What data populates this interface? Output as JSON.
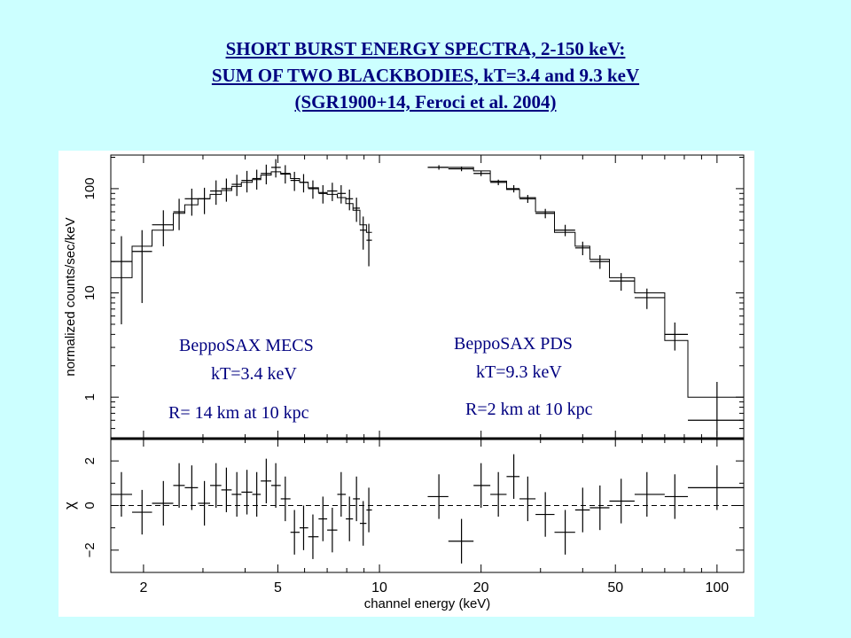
{
  "title_lines": [
    "SHORT BURST ENERGY SPECTRA, 2-150 keV:",
    "SUM OF TWO BLACKBODIES, kT=3.4 and 9.3 keV",
    "(SGR1900+14, Feroci et al. 2004)"
  ],
  "colors": {
    "background": "#ccffff",
    "title": "#000080",
    "annotation": "#000080",
    "plot_ink": "#000000"
  },
  "chart_data": [
    {
      "type": "scatter",
      "panel": "spectrum",
      "xlabel": "channel energy (keV)",
      "ylabel": "normalized counts/sec/keV",
      "xscale": "log",
      "yscale": "log",
      "xlim": [
        1.6,
        120
      ],
      "ylim": [
        0.4,
        210
      ],
      "xticks": [
        2,
        5,
        10,
        20,
        50,
        100
      ],
      "xtick_labels": [
        "2",
        "5",
        "10",
        "20",
        "50",
        "100"
      ],
      "yticks": [
        1,
        10,
        100
      ],
      "ytick_labels": [
        "1",
        "10",
        "100"
      ],
      "annotations": {
        "mecs_name": "BeppoSAX MECS",
        "mecs_kt": "kT=3.4 keV",
        "mecs_radius": "R= 14 km at 10 kpc",
        "pds_name": "BeppoSAX PDS",
        "pds_kt": "kT=9.3 keV",
        "pds_radius": "R=2 km at 10 kpc"
      },
      "series": [
        {
          "instrument": "MECS",
          "x": [
            1.72,
            1.98,
            2.29,
            2.55,
            2.78,
            3.03,
            3.28,
            3.52,
            3.78,
            4.05,
            4.33,
            4.62,
            4.93,
            5.26,
            5.6,
            5.96,
            6.35,
            6.8,
            7.25,
            7.7,
            8.15,
            8.55,
            8.95,
            9.3
          ],
          "x_low": [
            1.6,
            1.85,
            2.12,
            2.45,
            2.65,
            2.9,
            3.15,
            3.4,
            3.65,
            3.9,
            4.2,
            4.45,
            4.78,
            5.1,
            5.45,
            5.8,
            6.15,
            6.6,
            7.0,
            7.5,
            7.95,
            8.35,
            8.75,
            9.15
          ],
          "x_high": [
            1.85,
            2.12,
            2.45,
            2.65,
            2.9,
            3.15,
            3.4,
            3.65,
            3.9,
            4.2,
            4.45,
            4.78,
            5.1,
            5.45,
            5.8,
            6.15,
            6.6,
            7.0,
            7.5,
            7.95,
            8.35,
            8.75,
            9.15,
            9.5
          ],
          "y": [
            20,
            25,
            45,
            60,
            80,
            80,
            95,
            100,
            110,
            120,
            125,
            140,
            160,
            140,
            120,
            115,
            100,
            90,
            95,
            90,
            80,
            65,
            40,
            32
          ],
          "y_low": [
            5,
            8,
            28,
            40,
            55,
            57,
            70,
            75,
            85,
            92,
            98,
            110,
            128,
            112,
            95,
            92,
            80,
            72,
            76,
            72,
            62,
            48,
            26,
            18
          ],
          "y_high": [
            35,
            40,
            62,
            80,
            100,
            102,
            120,
            125,
            136,
            148,
            152,
            170,
            192,
            168,
            145,
            138,
            120,
            108,
            114,
            108,
            98,
            82,
            54,
            46
          ],
          "model_edges": [
            1.6,
            1.85,
            2.12,
            2.45,
            2.65,
            2.9,
            3.15,
            3.4,
            3.65,
            3.9,
            4.2,
            4.45,
            4.78,
            5.1,
            5.45,
            5.8,
            6.15,
            6.6,
            7.0,
            7.5,
            7.95,
            8.35,
            8.75,
            9.15,
            9.5
          ],
          "model_values": [
            14,
            28,
            40,
            58,
            70,
            80,
            88,
            96,
            105,
            115,
            122,
            135,
            145,
            138,
            125,
            115,
            102,
            92,
            88,
            82,
            72,
            62,
            45,
            38
          ]
        },
        {
          "instrument": "PDS",
          "x": [
            15,
            17.5,
            20,
            22.5,
            25,
            27.5,
            31,
            35.5,
            40,
            45,
            52,
            62,
            75,
            100
          ],
          "x_low": [
            13.9,
            16,
            19,
            21.3,
            23.8,
            26,
            29,
            33,
            38,
            42,
            48,
            57,
            70,
            82
          ],
          "x_high": [
            16,
            19,
            21.3,
            23.8,
            26,
            29,
            33,
            38,
            42,
            48,
            57,
            70,
            82,
            120
          ],
          "y": [
            160,
            155,
            140,
            115,
            100,
            80,
            58,
            40,
            27,
            20,
            13,
            9,
            4,
            0.6
          ],
          "y_low": [
            152,
            147,
            132,
            108,
            92,
            73,
            52,
            35,
            23,
            17,
            10.5,
            7,
            2.8,
            0.42
          ],
          "y_high": [
            168,
            163,
            148,
            122,
            108,
            87,
            64,
            45,
            31,
            23,
            15.5,
            11,
            5.2,
            1.4
          ],
          "model_edges": [
            13.9,
            16,
            19,
            21.3,
            23.8,
            26,
            29,
            33,
            38,
            42,
            48,
            57,
            70,
            82,
            120
          ],
          "model_values": [
            160,
            160,
            148,
            118,
            98,
            82,
            60,
            38,
            28,
            21,
            14,
            10,
            3.5,
            1
          ]
        }
      ]
    },
    {
      "type": "scatter",
      "panel": "residuals",
      "ylabel": "χ",
      "xscale": "log",
      "xlim": [
        1.6,
        120
      ],
      "ylim": [
        -3,
        3
      ],
      "yticks": [
        -2,
        0,
        2
      ],
      "ytick_labels": [
        "−2",
        "0",
        "2"
      ],
      "reference_line": 0,
      "series": [
        {
          "instrument": "MECS",
          "x": [
            1.72,
            1.98,
            2.29,
            2.55,
            2.78,
            3.03,
            3.28,
            3.52,
            3.78,
            4.05,
            4.33,
            4.62,
            4.93,
            5.26,
            5.6,
            5.96,
            6.35,
            6.8,
            7.25,
            7.7,
            8.15,
            8.55,
            8.95,
            9.3
          ],
          "y": [
            0.5,
            -0.3,
            0.1,
            0.9,
            0.8,
            0.1,
            0.9,
            0.7,
            0.5,
            0.6,
            0.5,
            1.1,
            0.9,
            0.3,
            -1.2,
            -1.0,
            -1.4,
            -0.6,
            -1.1,
            0.5,
            -0.6,
            0.3,
            -0.8,
            -0.2
          ],
          "x_low": [
            1.6,
            1.85,
            2.12,
            2.45,
            2.65,
            2.9,
            3.15,
            3.4,
            3.65,
            3.9,
            4.2,
            4.45,
            4.78,
            5.1,
            5.45,
            5.8,
            6.15,
            6.6,
            7.0,
            7.5,
            7.95,
            8.35,
            8.75,
            9.15
          ],
          "x_high": [
            1.85,
            2.12,
            2.45,
            2.65,
            2.9,
            3.15,
            3.4,
            3.65,
            3.9,
            4.2,
            4.45,
            4.78,
            5.1,
            5.45,
            5.8,
            6.15,
            6.6,
            7.0,
            7.5,
            7.95,
            8.35,
            8.75,
            9.15,
            9.5
          ],
          "err": [
            1.0,
            1.0,
            1.0,
            1.0,
            1.0,
            1.0,
            1.0,
            1.0,
            1.0,
            1.0,
            1.0,
            1.0,
            1.0,
            1.0,
            1.0,
            1.0,
            1.0,
            1.0,
            1.0,
            1.0,
            1.0,
            1.0,
            1.0,
            1.0
          ]
        },
        {
          "instrument": "PDS",
          "x": [
            15,
            17.5,
            20,
            22.5,
            25,
            27.5,
            31,
            35.5,
            40,
            45,
            52,
            62,
            75,
            100
          ],
          "y": [
            0.4,
            -1.6,
            0.9,
            0.5,
            1.3,
            0.3,
            -0.4,
            -1.2,
            -0.2,
            -0.1,
            0.2,
            0.5,
            0.4,
            0.8
          ],
          "x_low": [
            13.9,
            16,
            19,
            21.3,
            23.8,
            26,
            29,
            33,
            38,
            42,
            48,
            57,
            70,
            82
          ],
          "x_high": [
            16,
            19,
            21.3,
            23.8,
            26,
            29,
            33,
            38,
            42,
            48,
            57,
            70,
            82,
            120
          ],
          "err": [
            1.0,
            1.0,
            1.0,
            1.0,
            1.0,
            1.0,
            1.0,
            1.0,
            1.0,
            1.0,
            1.0,
            1.0,
            1.0,
            1.0
          ]
        }
      ]
    }
  ]
}
